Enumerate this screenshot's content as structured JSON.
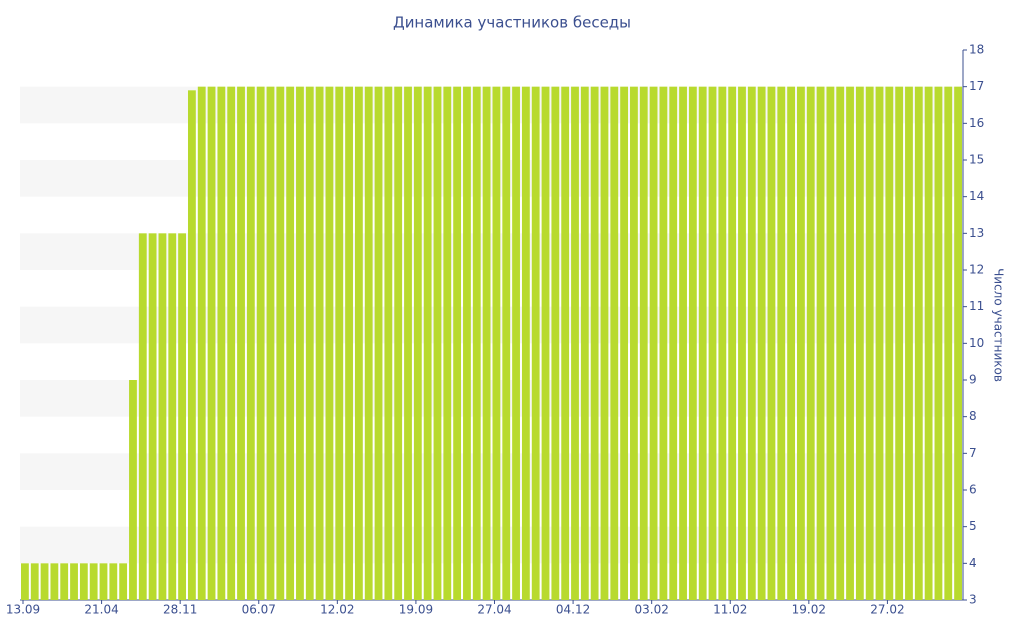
{
  "chart_data": {
    "type": "bar",
    "title": "Динамика участников беседы",
    "y_label": "Число участников",
    "categories": [
      "13.09",
      null,
      null,
      null,
      null,
      null,
      null,
      null,
      "21.04",
      null,
      null,
      null,
      null,
      null,
      null,
      null,
      "28.11",
      null,
      null,
      null,
      null,
      null,
      null,
      null,
      "06.07",
      null,
      null,
      null,
      null,
      null,
      null,
      null,
      "12.02",
      null,
      null,
      null,
      null,
      null,
      null,
      null,
      "19.09",
      null,
      null,
      null,
      null,
      null,
      null,
      null,
      "27.04",
      null,
      null,
      null,
      null,
      null,
      null,
      null,
      "04.12",
      null,
      null,
      null,
      null,
      null,
      null,
      null,
      "03.02",
      null,
      null,
      null,
      null,
      null,
      null,
      null,
      "11.02",
      null,
      null,
      null,
      null,
      null,
      null,
      null,
      "19.02",
      null,
      null,
      null,
      null,
      null,
      null,
      null,
      "27.02",
      null,
      null,
      null,
      null,
      null,
      null,
      null
    ],
    "values": [
      4,
      4,
      4,
      4,
      4,
      4,
      4,
      4,
      4,
      4,
      4,
      9,
      13,
      13,
      13,
      13,
      13,
      16.9,
      17,
      17,
      17,
      17,
      17,
      17,
      17,
      17,
      17,
      17,
      17,
      17,
      17,
      17,
      17,
      17,
      17,
      17,
      17,
      17,
      17,
      17,
      17,
      17,
      17,
      17,
      17,
      17,
      17,
      17,
      17,
      17,
      17,
      17,
      17,
      17,
      17,
      17,
      17,
      17,
      17,
      17,
      17,
      17,
      17,
      17,
      17,
      17,
      17,
      17,
      17,
      17,
      17,
      17,
      17,
      17,
      17,
      17,
      17,
      17,
      17,
      17,
      17,
      17,
      17,
      17,
      17,
      17,
      17,
      17,
      17,
      17,
      17,
      17,
      17,
      17,
      17,
      17
    ],
    "color": "#b8da2e",
    "ylim": [
      3,
      18
    ],
    "yticks": [
      3,
      4,
      5,
      6,
      7,
      8,
      9,
      10,
      11,
      12,
      13,
      14,
      15,
      16,
      17,
      18
    ],
    "y_axis_side": "right",
    "grid": "bands"
  }
}
